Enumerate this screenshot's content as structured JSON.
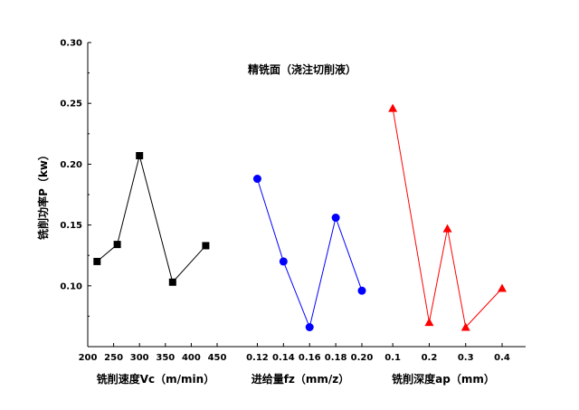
{
  "chart_data": {
    "type": "line",
    "title": "精铣面（浇注切削液）",
    "ylabel": "铣削功率P（kw）",
    "ylim": [
      0.05,
      0.3
    ],
    "yticks": [
      "0.10",
      "0.15",
      "0.20",
      "0.25",
      "0.30"
    ],
    "grid": false,
    "panels": [
      {
        "name": "cutting-speed",
        "xlabel": "铣削速度Vc（m/min）",
        "color": "#000000",
        "marker": "square",
        "xticks": [
          "200",
          "250",
          "300",
          "350",
          "400",
          "450"
        ],
        "xlim": [
          200,
          450
        ],
        "x": [
          218,
          257,
          300,
          364,
          428
        ],
        "y": [
          0.12,
          0.134,
          0.207,
          0.103,
          0.133
        ]
      },
      {
        "name": "feed-per-tooth",
        "xlabel": "进给量fz（mm/z）",
        "color": "#0000ff",
        "marker": "circle",
        "xticks": [
          "0.12",
          "0.14",
          "0.16",
          "0.18",
          "0.20"
        ],
        "xlim": [
          0.11,
          0.2
        ],
        "x": [
          0.12,
          0.14,
          0.16,
          0.18,
          0.2
        ],
        "y": [
          0.188,
          0.12,
          0.066,
          0.156,
          0.096
        ]
      },
      {
        "name": "cutting-depth",
        "xlabel": "铣削深度ap（mm）",
        "color": "#ff0000",
        "marker": "triangle",
        "xticks": [
          "0.1",
          "0.2",
          "0.3",
          "0.4"
        ],
        "xlim": [
          0.05,
          0.4
        ],
        "x": [
          0.1,
          0.2,
          0.25,
          0.3,
          0.4
        ],
        "y": [
          0.246,
          0.07,
          0.147,
          0.066,
          0.098
        ]
      }
    ]
  }
}
